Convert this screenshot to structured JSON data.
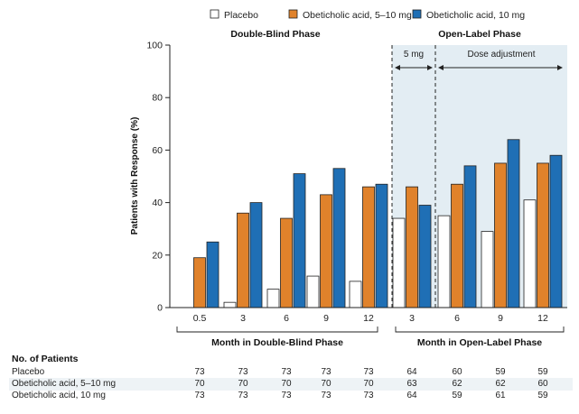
{
  "colors": {
    "placebo": "#ffffff",
    "oca_5_10": "#e0822b",
    "oca_10": "#1f6fb5",
    "bar_stroke": "#222222",
    "open_label_bg": "#e3edf3",
    "row_shade": "#eef3f6"
  },
  "legend": [
    {
      "label": "Placebo",
      "color": "#ffffff"
    },
    {
      "label": "Obeticholic acid, 5–10 mg",
      "color": "#e0822b"
    },
    {
      "label": "Obeticholic acid, 10 mg",
      "color": "#1f6fb5"
    }
  ],
  "annotations": {
    "double_blind_title": "Double-Blind Phase",
    "open_label_title": "Open-Label Phase",
    "five_mg": "5 mg",
    "dose_adjustment": "Dose adjustment",
    "double_blind_axis": "Month in Double-Blind Phase",
    "open_label_axis": "Month in Open-Label Phase"
  },
  "chart_data": {
    "type": "bar",
    "ylabel": "Patients with Response (%)",
    "ylim": [
      0,
      100
    ],
    "yticks": [
      0,
      20,
      40,
      60,
      80,
      100
    ],
    "grid": false,
    "legend_position": "top-right",
    "categories": [
      "0.5",
      "3",
      "6",
      "9",
      "12",
      "3",
      "6",
      "9",
      "12"
    ],
    "series": [
      {
        "name": "Placebo",
        "values": [
          null,
          2,
          7,
          12,
          10,
          34,
          35,
          29,
          41
        ]
      },
      {
        "name": "Obeticholic acid, 5–10 mg",
        "values": [
          19,
          36,
          34,
          43,
          46,
          46,
          47,
          55,
          55
        ]
      },
      {
        "name": "Obeticholic acid, 10 mg",
        "values": [
          25,
          40,
          51,
          53,
          47,
          39,
          54,
          64,
          58
        ]
      }
    ]
  },
  "table": {
    "title": "No. of Patients",
    "rows": [
      {
        "label": "Placebo",
        "values": [
          "73",
          "73",
          "73",
          "73",
          "73",
          "64",
          "60",
          "59",
          "59"
        ]
      },
      {
        "label": "Obeticholic acid, 5–10 mg",
        "values": [
          "70",
          "70",
          "70",
          "70",
          "70",
          "63",
          "62",
          "62",
          "60"
        ]
      },
      {
        "label": "Obeticholic acid, 10 mg",
        "values": [
          "73",
          "73",
          "73",
          "73",
          "73",
          "64",
          "59",
          "61",
          "59"
        ]
      }
    ]
  }
}
